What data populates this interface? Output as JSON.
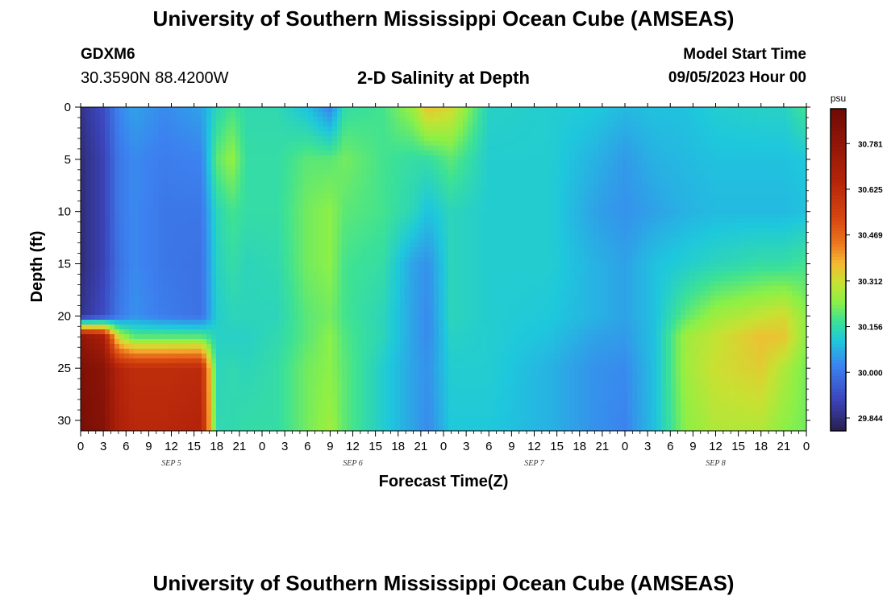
{
  "header": {
    "title": "University of Southern Mississippi Ocean Cube (AMSEAS)",
    "station_id": "GDXM6",
    "coordinates": "30.3590N  88.4200W",
    "subtitle": "2-D Salinity at Depth",
    "model_start_label": "Model Start Time",
    "model_start_value": "09/05/2023 Hour 00"
  },
  "footer": {
    "title": "University of Southern Mississippi Ocean Cube (AMSEAS)"
  },
  "chart_data": {
    "type": "heatmap",
    "title": "2-D Salinity at Depth",
    "xlabel": "Forecast Time(Z)",
    "ylabel": "Depth (ft)",
    "x_range_hours": [
      0,
      96
    ],
    "x_tick_step_hours": 3,
    "x_tick_labels": [
      "0",
      "3",
      "6",
      "9",
      "12",
      "15",
      "18",
      "21",
      "0",
      "3",
      "6",
      "9",
      "12",
      "15",
      "18",
      "21",
      "0",
      "3",
      "6",
      "9",
      "12",
      "15",
      "18",
      "21",
      "0",
      "3",
      "6",
      "9",
      "12",
      "15",
      "18",
      "21",
      "0"
    ],
    "day_labels": [
      {
        "label": "SEP 5",
        "hour": 12
      },
      {
        "label": "SEP 6",
        "hour": 36
      },
      {
        "label": "SEP 7",
        "hour": 60
      },
      {
        "label": "SEP 8",
        "hour": 84
      }
    ],
    "y_range_ft": [
      0,
      31
    ],
    "y_ticks": [
      0,
      5,
      10,
      15,
      20,
      25,
      30
    ],
    "colorbar": {
      "unit": "psu",
      "min": 29.8,
      "max": 30.9,
      "ticks": [
        "30.781",
        "30.625",
        "30.469",
        "30.312",
        "30.156",
        "30.000",
        "29.844"
      ],
      "tick_values": [
        30.781,
        30.625,
        30.469,
        30.312,
        30.156,
        30.0,
        29.844
      ]
    },
    "grid": false,
    "depths_ft": [
      0,
      5,
      10,
      15,
      20,
      22,
      25,
      31
    ],
    "columns": [
      {
        "hour": 0,
        "values": [
          29.86,
          29.84,
          29.84,
          29.84,
          29.86,
          30.78,
          30.84,
          30.86
        ]
      },
      {
        "hour": 3,
        "values": [
          29.92,
          29.9,
          29.9,
          29.9,
          29.92,
          30.7,
          30.8,
          30.82
        ]
      },
      {
        "hour": 5,
        "values": [
          30.02,
          30.0,
          30.0,
          29.99,
          30.0,
          30.3,
          30.66,
          30.68
        ]
      },
      {
        "hour": 7,
        "values": [
          30.06,
          30.03,
          30.03,
          30.03,
          30.04,
          30.2,
          30.62,
          30.64
        ]
      },
      {
        "hour": 11,
        "values": [
          30.03,
          30.01,
          30.0,
          30.0,
          30.01,
          30.2,
          30.62,
          30.64
        ]
      },
      {
        "hour": 16,
        "values": [
          30.06,
          30.02,
          30.0,
          29.99,
          29.99,
          30.2,
          30.63,
          30.66
        ]
      },
      {
        "hour": 18,
        "values": [
          30.14,
          30.2,
          30.14,
          30.13,
          30.12,
          30.13,
          30.14,
          30.15
        ]
      },
      {
        "hour": 20,
        "values": [
          30.18,
          30.25,
          30.18,
          30.16,
          30.14,
          30.13,
          30.15,
          30.15
        ]
      },
      {
        "hour": 22,
        "values": [
          30.15,
          30.16,
          30.16,
          30.14,
          30.14,
          30.13,
          30.14,
          30.16
        ]
      },
      {
        "hour": 26,
        "values": [
          30.15,
          30.16,
          30.16,
          30.15,
          30.14,
          30.15,
          30.16,
          30.16
        ]
      },
      {
        "hour": 30,
        "values": [
          30.1,
          30.2,
          30.22,
          30.22,
          30.2,
          30.2,
          30.22,
          30.22
        ]
      },
      {
        "hour": 33,
        "values": [
          30.02,
          30.2,
          30.24,
          30.24,
          30.22,
          30.24,
          30.24,
          30.26
        ]
      },
      {
        "hour": 35,
        "values": [
          30.16,
          30.22,
          30.2,
          30.18,
          30.18,
          30.19,
          30.2,
          30.2
        ]
      },
      {
        "hour": 40,
        "values": [
          30.18,
          30.18,
          30.18,
          30.16,
          30.14,
          30.14,
          30.12,
          30.12
        ]
      },
      {
        "hour": 44,
        "values": [
          30.26,
          30.16,
          30.14,
          30.06,
          30.06,
          30.06,
          30.06,
          30.06
        ]
      },
      {
        "hour": 46,
        "values": [
          30.36,
          30.16,
          30.1,
          30.04,
          30.03,
          30.03,
          30.04,
          30.03
        ]
      },
      {
        "hour": 49,
        "values": [
          30.32,
          30.2,
          30.14,
          30.14,
          30.14,
          30.13,
          30.12,
          30.11
        ]
      },
      {
        "hour": 54,
        "values": [
          30.13,
          30.12,
          30.12,
          30.12,
          30.12,
          30.12,
          30.12,
          30.11
        ]
      },
      {
        "hour": 62,
        "values": [
          30.12,
          30.12,
          30.12,
          30.12,
          30.11,
          30.1,
          30.08,
          30.08
        ]
      },
      {
        "hour": 68,
        "values": [
          30.11,
          30.08,
          30.06,
          30.08,
          30.08,
          30.06,
          30.04,
          30.04
        ]
      },
      {
        "hour": 72,
        "values": [
          30.09,
          30.05,
          30.04,
          30.06,
          30.06,
          30.05,
          30.03,
          30.02
        ]
      },
      {
        "hour": 76,
        "values": [
          30.1,
          30.08,
          30.06,
          30.1,
          30.1,
          30.1,
          30.1,
          30.1
        ]
      },
      {
        "hour": 80,
        "values": [
          30.1,
          30.09,
          30.08,
          30.12,
          30.2,
          30.26,
          30.26,
          30.24
        ]
      },
      {
        "hour": 84,
        "values": [
          30.12,
          30.1,
          30.09,
          30.14,
          30.26,
          30.3,
          30.31,
          30.28
        ]
      },
      {
        "hour": 90,
        "values": [
          30.13,
          30.1,
          30.09,
          30.16,
          30.3,
          30.36,
          30.34,
          30.28
        ]
      },
      {
        "hour": 93,
        "values": [
          30.13,
          30.1,
          30.09,
          30.16,
          30.32,
          30.35,
          30.28,
          30.24
        ]
      },
      {
        "hour": 96,
        "values": [
          30.18,
          30.11,
          30.1,
          30.18,
          30.24,
          30.24,
          30.22,
          30.22
        ]
      }
    ]
  }
}
